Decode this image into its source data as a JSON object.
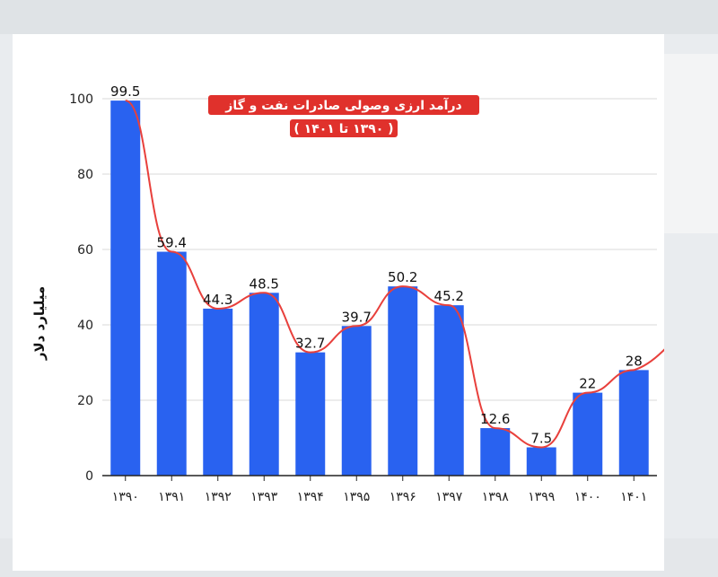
{
  "chart_data": {
    "type": "bar",
    "title": "درآمد ارزی وصولی صادرات نفت و گاز",
    "subtitle": "( ۱۳۹۰ تا ۱۴۰۱ )",
    "ylabel": "میلیارد دلار",
    "xlabel": "",
    "ylim": [
      0,
      100
    ],
    "yticks": [
      0,
      20,
      40,
      60,
      80,
      100
    ],
    "grid": true,
    "categories": [
      "۱۳۹۰",
      "۱۳۹۱",
      "۱۳۹۲",
      "۱۳۹۳",
      "۱۳۹۴",
      "۱۳۹۵",
      "۱۳۹۶",
      "۱۳۹۷",
      "۱۳۹۸",
      "۱۳۹۹",
      "۱۴۰۰",
      "۱۴۰۱"
    ],
    "values": [
      99.5,
      59.4,
      44.3,
      48.5,
      32.7,
      39.7,
      50.2,
      45.2,
      12.6,
      7.5,
      22,
      28
    ],
    "value_labels": [
      "99.5",
      "59.4",
      "44.3",
      "48.5",
      "32.7",
      "39.7",
      "50.2",
      "45.2",
      "12.6",
      "7.5",
      "22",
      "28"
    ],
    "trend_line": true
  },
  "colors": {
    "bar": "#2962f0",
    "trend": "#e8403c",
    "title_bg": "#e0312c",
    "grid": "#d9d9d9",
    "axis": "#222222"
  }
}
